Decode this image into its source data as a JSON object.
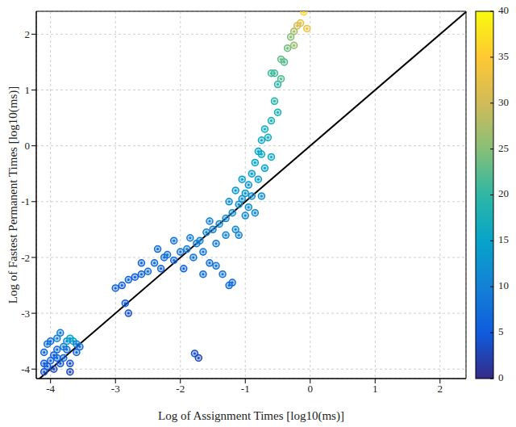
{
  "chart_data": {
    "type": "scatter",
    "x_label": "Log of Assignment Times [log10(ms)]",
    "y_label": "Log of Fastest Permanent Times [log10(ms)]",
    "xlim": [
      -4.22,
      2.4
    ],
    "ylim": [
      -4.17,
      2.41
    ],
    "xticks": [
      -4,
      -3,
      -2,
      -1,
      0,
      1,
      2
    ],
    "yticks": [
      -4,
      -3,
      -2,
      -1,
      0,
      1,
      2
    ],
    "grid": true,
    "marker": "circle",
    "x": [
      -4.1,
      -4.05,
      -4.0,
      -3.95,
      -3.9,
      -4.1,
      -4.05,
      -3.85,
      -3.8,
      -3.75,
      -3.7,
      -3.65,
      -3.6,
      -3.9,
      -4.0,
      -3.95,
      -3.8,
      -3.7,
      -4.1,
      -3.85,
      -3.75,
      -3.6,
      -3.55,
      -3.7,
      -3.9,
      -2.8,
      -2.85,
      -1.78,
      -1.72,
      -3.0,
      -2.9,
      -2.8,
      -2.7,
      -2.6,
      -2.5,
      -2.4,
      -2.3,
      -2.25,
      -2.2,
      -2.1,
      -2.0,
      -1.95,
      -1.9,
      -1.8,
      -1.75,
      -1.7,
      -1.65,
      -1.6,
      -1.55,
      -1.5,
      -1.45,
      -1.4,
      -1.35,
      -1.3,
      -1.25,
      -1.2,
      -1.2,
      -1.15,
      -1.1,
      -1.1,
      -1.05,
      -1.0,
      -1.0,
      -0.95,
      -0.95,
      -0.9,
      -0.9,
      -0.85,
      -0.85,
      -0.8,
      -0.8,
      -0.75,
      -0.75,
      -0.7,
      -0.7,
      -0.65,
      -0.6,
      -0.6,
      -0.55,
      -0.5,
      -0.5,
      -0.6,
      -0.55,
      -0.45,
      -0.4,
      -0.35,
      -0.3,
      -0.25,
      -0.2,
      -0.15,
      -0.1,
      -0.05,
      -0.25,
      -2.1,
      -2.35,
      -2.6,
      -1.85,
      -1.55,
      -1.3,
      -1.65,
      -1.45,
      -1.25,
      -1.15,
      -1.05,
      -0.45,
      -0.75
    ],
    "y": [
      -4.05,
      -3.95,
      -3.85,
      -3.75,
      -3.65,
      -3.7,
      -3.55,
      -3.9,
      -3.6,
      -3.5,
      -3.45,
      -3.5,
      -3.7,
      -3.45,
      -3.5,
      -4.0,
      -3.8,
      -3.9,
      -3.9,
      -3.35,
      -3.65,
      -3.55,
      -3.6,
      -4.05,
      -3.8,
      -3.0,
      -2.82,
      -3.72,
      -3.8,
      -2.55,
      -2.5,
      -2.4,
      -2.35,
      -2.3,
      -2.25,
      -2.1,
      -2.2,
      -2.0,
      -1.95,
      -2.05,
      -1.9,
      -2.2,
      -1.85,
      -2.0,
      -1.75,
      -1.7,
      -1.9,
      -1.55,
      -2.1,
      -1.5,
      -1.75,
      -1.4,
      -2.3,
      -1.3,
      -2.5,
      -2.45,
      -1.2,
      -1.5,
      -1.05,
      -1.6,
      -0.95,
      -1.25,
      -0.85,
      -0.7,
      -1.1,
      -0.5,
      -0.9,
      -1.2,
      -0.3,
      -0.1,
      -0.6,
      0.1,
      -0.9,
      0.3,
      -0.4,
      0.15,
      0.45,
      -0.2,
      0.8,
      0.6,
      1.1,
      1.3,
      1.3,
      1.2,
      1.5,
      1.75,
      1.95,
      2.05,
      2.15,
      2.2,
      2.4,
      2.1,
      1.8,
      -1.7,
      -1.85,
      -2.1,
      -1.65,
      -1.35,
      -1.6,
      -2.3,
      -2.15,
      -1.0,
      -0.8,
      -0.6,
      1.55,
      -0.15
    ],
    "color_values": [
      4,
      5,
      6,
      5,
      7,
      6,
      8,
      5,
      9,
      12,
      15,
      14,
      6,
      10,
      7,
      3,
      6,
      4,
      5,
      9,
      8,
      10,
      7,
      3,
      6,
      4,
      5,
      4,
      3,
      6,
      5,
      6,
      5,
      6,
      7,
      7,
      6,
      7,
      8,
      7,
      8,
      6,
      9,
      8,
      9,
      10,
      8,
      10,
      7,
      10,
      9,
      11,
      8,
      11,
      7,
      7,
      12,
      11,
      12,
      10,
      12,
      11,
      13,
      13,
      12,
      14,
      12,
      11,
      15,
      15,
      14,
      16,
      12,
      17,
      15,
      17,
      18,
      16,
      19,
      18,
      20,
      21,
      21,
      22,
      22,
      24,
      25,
      27,
      30,
      32,
      36,
      33,
      26,
      8,
      7,
      6,
      9,
      10,
      10,
      7,
      8,
      12,
      13,
      14,
      23,
      16
    ],
    "colorbar": {
      "range": [
        0,
        40
      ],
      "ticks": [
        0,
        5,
        10,
        15,
        20,
        25,
        30,
        35,
        40
      ]
    },
    "diagonal": {
      "x": [
        -4.17,
        2.4
      ],
      "y": [
        -4.17,
        2.4
      ]
    }
  }
}
